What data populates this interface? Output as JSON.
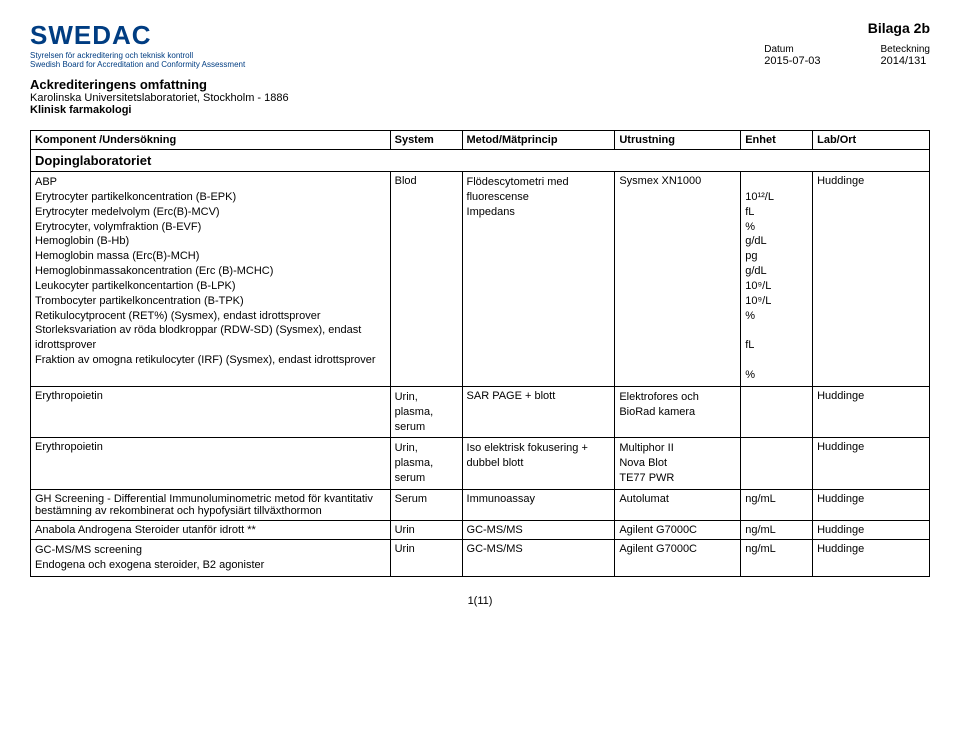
{
  "logo": {
    "title": "SWEDAC",
    "sub_sv": "Styrelsen för ackreditering och teknisk kontroll",
    "sub_en": "Swedish Board for Accreditation and Conformity Assessment"
  },
  "header": {
    "bilaga": "Bilaga 2b",
    "datum_label": "Datum",
    "datum_value": "2015-07-03",
    "beteckning_label": "Beteckning",
    "beteckning_value": "2014/131"
  },
  "acc": {
    "title": "Ackrediteringens omfattning",
    "org": "Karolinska Universitetslaboratoriet, Stockholm - 1886",
    "dept": "Klinisk farmakologi"
  },
  "columns": {
    "c0": "Komponent /Undersökning",
    "c1": "System",
    "c2": "Metod/Mätprincip",
    "c3": "Utrustning",
    "c4": "Enhet",
    "c5": "Lab/Ort"
  },
  "section": "Dopinglaboratoriet",
  "rows": {
    "r0": {
      "komp": [
        "ABP",
        "Erytrocyter partikelkoncentration (B-EPK)",
        "Erytrocyter medelvolym (Erc(B)-MCV)",
        "Erytrocyter, volymfraktion (B-EVF)",
        "Hemoglobin (B-Hb)",
        "Hemoglobin massa (Erc(B)-MCH)",
        "Hemoglobinmassakoncentration (Erc (B)-MCHC)",
        "Leukocyter partikelkoncentartion (B-LPK)",
        "Trombocyter partikelkoncentration (B-TPK)",
        "Retikulocytprocent (RET%) (Sysmex), endast idrottsprover",
        "Storleksvariation av röda blodkroppar (RDW-SD) (Sysmex), endast idrottsprover",
        "Fraktion av omogna retikulocyter (IRF) (Sysmex), endast idrottsprover"
      ],
      "sys": "Blod",
      "met": [
        "Flödescytometri med",
        "fluorescense",
        "Impedans"
      ],
      "utr": "Sysmex XN1000",
      "enh": [
        "",
        "10¹²/L",
        "fL",
        "%",
        "g/dL",
        "pg",
        "g/dL",
        "10⁹/L",
        "10⁹/L",
        "%",
        "",
        "fL",
        "",
        "%"
      ],
      "lab": "Huddinge"
    },
    "r1": {
      "komp": "Erythropoietin",
      "sys": [
        "Urin,",
        "plasma,",
        "serum"
      ],
      "met": "SAR PAGE + blott",
      "utr": [
        "Elektrofores och",
        "BioRad kamera"
      ],
      "enh": "",
      "lab": "Huddinge"
    },
    "r2": {
      "komp": "Erythropoietin",
      "sys": [
        "Urin,",
        "plasma,",
        "serum"
      ],
      "met": [
        "Iso elektrisk fokusering +",
        "dubbel blott"
      ],
      "utr": [
        "Multiphor II",
        "Nova Blot",
        "TE77 PWR"
      ],
      "enh": "",
      "lab": "Huddinge"
    },
    "r3": {
      "komp": "GH Screening - Differential Immunoluminometric metod för kvantitativ bestämning av rekombinerat och hypofysiärt tillväxthormon",
      "sys": "Serum",
      "met": "Immunoassay",
      "utr": "Autolumat",
      "enh": "ng/mL",
      "lab": "Huddinge"
    },
    "r4": {
      "komp": "Anabola Androgena Steroider utanför idrott **",
      "sys": "Urin",
      "met": "GC-MS/MS",
      "utr": "Agilent G7000C",
      "enh": "ng/mL",
      "lab": "Huddinge"
    },
    "r5": {
      "komp": [
        "GC-MS/MS screening",
        "Endogena och exogena steroider, B2 agonister"
      ],
      "sys": "Urin",
      "met": "GC-MS/MS",
      "utr": "Agilent G7000C",
      "enh": "ng/mL",
      "lab": "Huddinge"
    }
  },
  "page": "1(11)"
}
